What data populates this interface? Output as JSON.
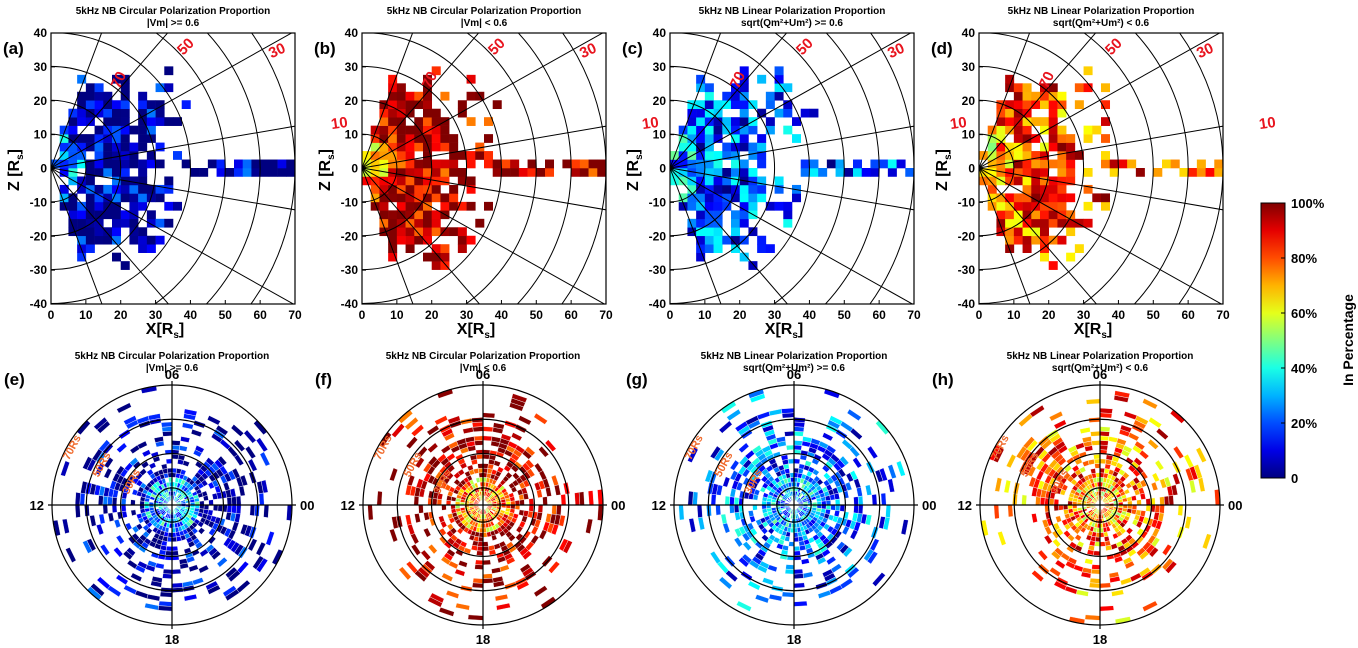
{
  "figure": {
    "colorbar": {
      "label": "In Percentage",
      "ticks": [
        "0",
        "20%",
        "40%",
        "60%",
        "80%",
        "100%"
      ],
      "range": [
        0,
        100
      ],
      "colormap": "jet"
    }
  },
  "chart_data": [
    {
      "type": "heatmap",
      "panel": "(a)",
      "title": "5kHz NB Circular Polarization Proportion",
      "subtitle": "|Vm| >= 0.6",
      "xlabel": "X[R",
      "xlabel_sub": "s",
      "ylabel": "Z [R",
      "ylabel_sub": "s",
      "xlim": [
        0,
        70
      ],
      "ylim": [
        -40,
        40
      ],
      "xticks": [
        "0",
        "10",
        "20",
        "30",
        "40",
        "50",
        "60",
        "70"
      ],
      "yticks": [
        "40",
        "30",
        "20",
        "10",
        "0",
        "-10",
        "-20",
        "-30",
        "-40"
      ],
      "latitude_labels": [
        "70",
        "50",
        "30",
        "10"
      ],
      "latitude_lines_deg": [
        -70,
        -50,
        -30,
        -10,
        10,
        30,
        50,
        70
      ],
      "radial_circles_Rs": [
        10,
        20,
        30,
        40,
        50,
        60,
        70
      ],
      "dominant_value_pct": 5,
      "inner_value_pct": 25
    },
    {
      "type": "heatmap",
      "panel": "(b)",
      "title": "5kHz NB Circular Polarization Proportion",
      "subtitle": "|Vm| < 0.6",
      "xlabel": "X[R",
      "xlabel_sub": "s",
      "ylabel": "Z [R",
      "ylabel_sub": "s",
      "xlim": [
        0,
        70
      ],
      "ylim": [
        -40,
        40
      ],
      "xticks": [
        "0",
        "10",
        "20",
        "30",
        "40",
        "50",
        "60",
        "70"
      ],
      "yticks": [
        "40",
        "30",
        "20",
        "10",
        "0",
        "-10",
        "-20",
        "-30",
        "-40"
      ],
      "latitude_labels": [
        "70",
        "50",
        "30",
        "10"
      ],
      "dominant_value_pct": 95,
      "inner_value_pct": 75
    },
    {
      "type": "heatmap",
      "panel": "(c)",
      "title": "5kHz NB Linear Polarization Proportion",
      "subtitle": "sqrt(Qm²+Um²) >= 0.6",
      "xlabel": "X[R",
      "xlabel_sub": "s",
      "ylabel": "Z [R",
      "ylabel_sub": "s",
      "xlim": [
        0,
        70
      ],
      "ylim": [
        -40,
        40
      ],
      "xticks": [
        "0",
        "10",
        "20",
        "30",
        "40",
        "50",
        "60",
        "70"
      ],
      "yticks": [
        "40",
        "30",
        "20",
        "10",
        "0",
        "-10",
        "-20",
        "-30",
        "-40"
      ],
      "latitude_labels": [
        "70",
        "50",
        "30",
        "10"
      ],
      "dominant_value_pct": 20,
      "inner_value_pct": 30
    },
    {
      "type": "heatmap",
      "panel": "(d)",
      "title": "5kHz NB Linear Polarization Proportion",
      "subtitle": "sqrt(Qm²+Um²) < 0.6",
      "xlabel": "X[R",
      "xlabel_sub": "s",
      "ylabel": "Z [R",
      "ylabel_sub": "s",
      "xlim": [
        0,
        70
      ],
      "ylim": [
        -40,
        40
      ],
      "xticks": [
        "0",
        "10",
        "20",
        "30",
        "40",
        "50",
        "60",
        "70"
      ],
      "yticks": [
        "40",
        "30",
        "20",
        "10",
        "0",
        "-10",
        "-20",
        "-30",
        "-40"
      ],
      "latitude_labels": [
        "70",
        "50",
        "30",
        "10"
      ],
      "dominant_value_pct": 80,
      "inner_value_pct": 70
    },
    {
      "type": "heatmap",
      "panel": "(e)",
      "projection": "polar local time",
      "title": "5kHz NB Circular Polarization Proportion",
      "subtitle": "|Vm| >= 0.6",
      "local_time_labels": [
        "06",
        "12",
        "18",
        "00"
      ],
      "radius_labels": [
        "70Rs",
        "50Rs",
        "30Rs"
      ],
      "rmax_Rs": 70,
      "dominant_value_pct": 5,
      "inner_value_pct": 30
    },
    {
      "type": "heatmap",
      "panel": "(f)",
      "projection": "polar local time",
      "title": "5kHz NB Circular Polarization Proportion",
      "subtitle": "|Vm| < 0.6",
      "local_time_labels": [
        "06",
        "12",
        "18",
        "00"
      ],
      "radius_labels": [
        "70Rs",
        "50Rs",
        "30Rs"
      ],
      "rmax_Rs": 70,
      "dominant_value_pct": 95,
      "inner_value_pct": 72
    },
    {
      "type": "heatmap",
      "panel": "(g)",
      "projection": "polar local time",
      "title": "5kHz NB Linear Polarization Proportion",
      "subtitle": "sqrt(Qm²+Um²) >= 0.6",
      "local_time_labels": [
        "06",
        "12",
        "18",
        "00"
      ],
      "radius_labels": [
        "70Rs",
        "50Rs",
        "30Rs"
      ],
      "rmax_Rs": 70,
      "dominant_value_pct": 22,
      "inner_value_pct": 30
    },
    {
      "type": "heatmap",
      "panel": "(h)",
      "projection": "polar local time",
      "title": "5kHz NB Linear Polarization Proportion",
      "subtitle": "sqrt(Qm²+Um²) < 0.6",
      "local_time_labels": [
        "06",
        "12",
        "18",
        "00"
      ],
      "radius_labels": [
        "70Rs",
        "50Rs",
        "30Rs"
      ],
      "rmax_Rs": 70,
      "dominant_value_pct": 78,
      "inner_value_pct": 70
    }
  ]
}
